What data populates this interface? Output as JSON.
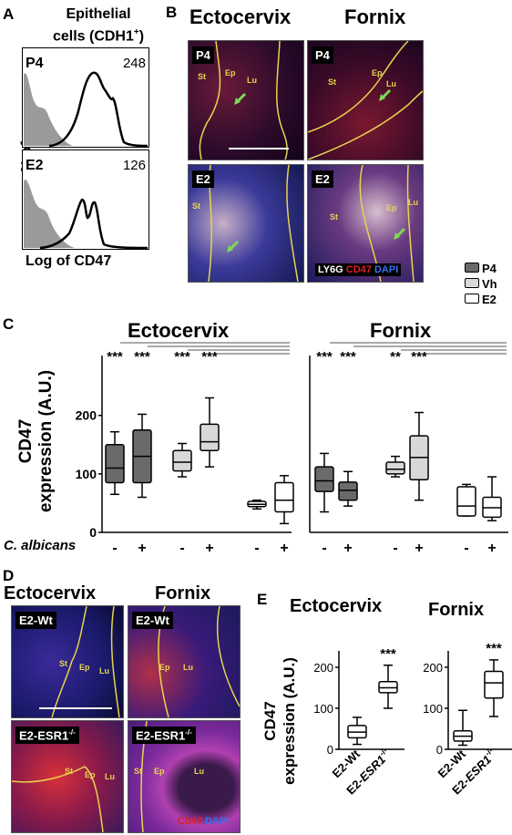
{
  "panel_labels": {
    "a": "A",
    "b": "B",
    "c": "C",
    "d": "D",
    "e": "E"
  },
  "panel_a": {
    "title_line1": "Epithelial",
    "title_line2": "cells (CDH1",
    "title_sup": "+",
    "title_end": ")",
    "ylabel": "% of max",
    "xlabel": "Log of CD47",
    "histograms": [
      {
        "condition": "P4",
        "mfi": "248"
      },
      {
        "condition": "E2",
        "mfi": "126"
      }
    ]
  },
  "panel_b": {
    "col1": "Ectocervix",
    "col2": "Fornix",
    "tags": [
      "P4",
      "P4",
      "E2",
      "E2"
    ],
    "regions": {
      "st": "St",
      "ep": "Ep",
      "lu": "Lu"
    },
    "stain_ly6g": "LY6G",
    "stain_cd47": "CD47",
    "stain_dapi": "DAPI",
    "colors": {
      "ly6g": "#ffffff",
      "cd47": "#e02020",
      "dapi": "#3a6ff0",
      "boundary": "#e8d44d",
      "arrow": "#7ed957"
    }
  },
  "legend": {
    "items": [
      "P4",
      "Vh",
      "E2"
    ]
  },
  "chart_data": [
    {
      "type": "box",
      "panel": "C",
      "title": "Ectocervix",
      "ylabel_line1": "CD47",
      "ylabel_line2": "expression (A.U.)",
      "yticks": [
        0,
        100,
        200
      ],
      "ylim": [
        0,
        290
      ],
      "xlabel": "C. albicans",
      "categories": [
        "-",
        "+",
        "-",
        "+",
        "-",
        "+"
      ],
      "groups": [
        "P4",
        "Vh",
        "E2"
      ],
      "boxes": [
        {
          "group": "P4",
          "c_albicans": "-",
          "min": 65,
          "q1": 85,
          "median": 110,
          "q3": 150,
          "max": 172
        },
        {
          "group": "P4",
          "c_albicans": "+",
          "min": 60,
          "q1": 85,
          "median": 130,
          "q3": 175,
          "max": 202
        },
        {
          "group": "Vh",
          "c_albicans": "-",
          "min": 95,
          "q1": 105,
          "median": 120,
          "q3": 140,
          "max": 152
        },
        {
          "group": "Vh",
          "c_albicans": "+",
          "min": 112,
          "q1": 140,
          "median": 155,
          "q3": 185,
          "max": 230
        },
        {
          "group": "E2",
          "c_albicans": "-",
          "min": 40,
          "q1": 44,
          "median": 48,
          "q3": 53,
          "max": 55
        },
        {
          "group": "E2",
          "c_albicans": "+",
          "min": 15,
          "q1": 35,
          "median": 55,
          "q3": 85,
          "max": 97
        }
      ],
      "significance": [
        "***",
        "***",
        "***",
        "***"
      ]
    },
    {
      "type": "box",
      "panel": "C",
      "title": "Fornix",
      "yticks": [],
      "ylim": [
        0,
        290
      ],
      "categories": [
        "-",
        "+",
        "-",
        "+",
        "-",
        "+"
      ],
      "groups": [
        "P4",
        "Vh",
        "E2"
      ],
      "boxes": [
        {
          "group": "P4",
          "c_albicans": "-",
          "min": 35,
          "q1": 70,
          "median": 88,
          "q3": 112,
          "max": 135
        },
        {
          "group": "P4",
          "c_albicans": "+",
          "min": 45,
          "q1": 55,
          "median": 72,
          "q3": 86,
          "max": 104
        },
        {
          "group": "Vh",
          "c_albicans": "-",
          "min": 95,
          "q1": 100,
          "median": 108,
          "q3": 120,
          "max": 130
        },
        {
          "group": "Vh",
          "c_albicans": "+",
          "min": 55,
          "q1": 90,
          "median": 128,
          "q3": 165,
          "max": 205
        },
        {
          "group": "E2",
          "c_albicans": "-",
          "min": 28,
          "q1": 28,
          "median": 45,
          "q3": 78,
          "max": 82
        },
        {
          "group": "E2",
          "c_albicans": "+",
          "min": 20,
          "q1": 26,
          "median": 42,
          "q3": 60,
          "max": 95
        }
      ],
      "significance": [
        "***",
        "***",
        "**",
        "***"
      ]
    },
    {
      "type": "box",
      "panel": "E",
      "title": "Ectocervix",
      "ylabel_line1": "CD47",
      "ylabel_line2": "expression (A.U.)",
      "yticks": [
        0,
        100,
        200
      ],
      "ylim": [
        0,
        240
      ],
      "categories": [
        "E2-Wt",
        "E2-ESR1-/-"
      ],
      "boxes": [
        {
          "group": "E2-Wt",
          "min": 12,
          "q1": 28,
          "median": 42,
          "q3": 58,
          "max": 78
        },
        {
          "group": "E2-ESR1-/-",
          "min": 100,
          "q1": 138,
          "median": 150,
          "q3": 165,
          "max": 205
        }
      ],
      "significance": [
        "***"
      ]
    },
    {
      "type": "box",
      "panel": "E",
      "title": "Fornix",
      "yticks": [
        0,
        100,
        200
      ],
      "ylim": [
        0,
        240
      ],
      "categories": [
        "E2-Wt",
        "E2-ESR1-/-"
      ],
      "boxes": [
        {
          "group": "E2-Wt",
          "min": 10,
          "q1": 20,
          "median": 32,
          "q3": 45,
          "max": 95
        },
        {
          "group": "E2-ESR1-/-",
          "min": 80,
          "q1": 125,
          "median": 162,
          "q3": 190,
          "max": 218
        }
      ],
      "significance": [
        "***"
      ]
    }
  ],
  "panel_d": {
    "col1": "Ectocervix",
    "col2": "Fornix",
    "tags": [
      "E2-Wt",
      "E2-Wt",
      "E2-ESR1",
      "E2-ESR1"
    ],
    "tag_sup": "-/-",
    "regions": {
      "st": "St",
      "ep": "Ep",
      "lu": "Lu"
    },
    "stain_cd47": "Cd47",
    "stain_dapi": "DAPI"
  },
  "panel_e": {
    "xlabel_wt": "E2-Wt",
    "xlabel_ko_prefix": "E2-",
    "xlabel_ko_gene": "ESR1",
    "xlabel_ko_sup": "-/-"
  }
}
